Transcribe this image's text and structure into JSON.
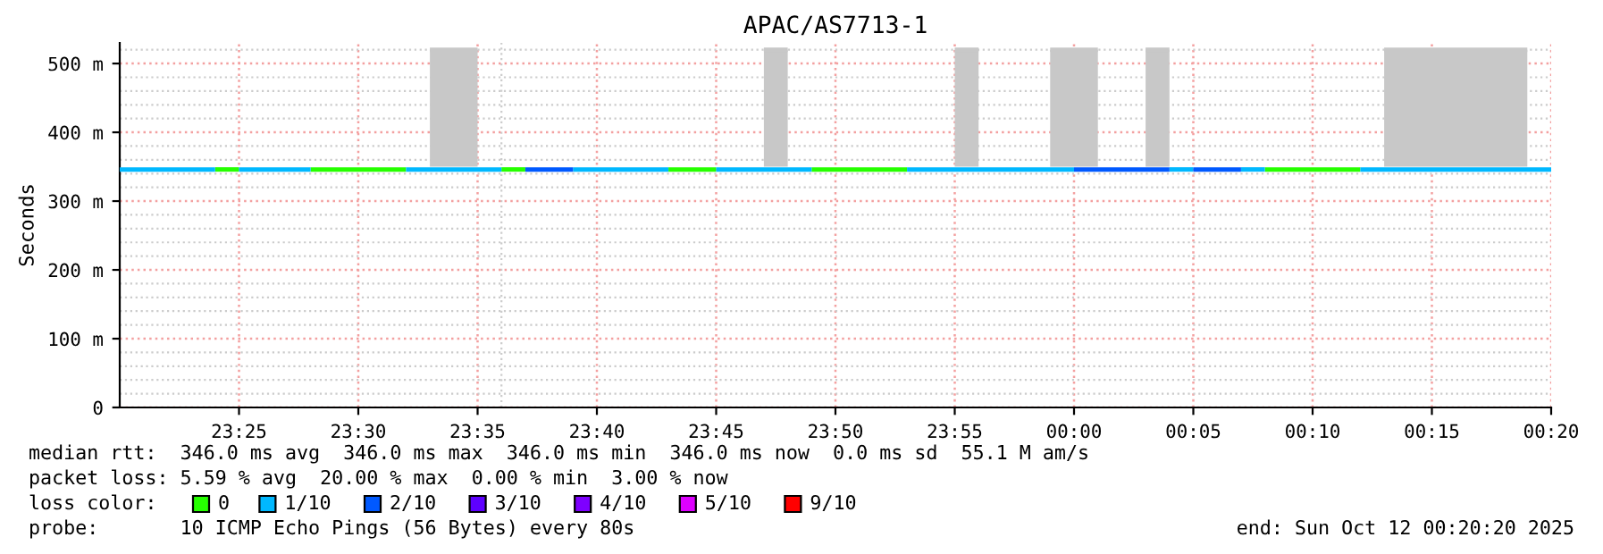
{
  "chart_data": {
    "type": "line",
    "title": "APAC/AS7713-1",
    "ylabel": "Seconds",
    "xlim": [
      "2025-10-11T23:20",
      "2025-10-12T00:20"
    ],
    "ylim": [
      0,
      530
    ],
    "xticks": [
      {
        "value": "2025-10-11T23:25",
        "label": "23:25"
      },
      {
        "value": "2025-10-11T23:30",
        "label": "23:30"
      },
      {
        "value": "2025-10-11T23:35",
        "label": "23:35"
      },
      {
        "value": "2025-10-11T23:40",
        "label": "23:40"
      },
      {
        "value": "2025-10-11T23:45",
        "label": "23:45"
      },
      {
        "value": "2025-10-11T23:50",
        "label": "23:50"
      },
      {
        "value": "2025-10-11T23:55",
        "label": "23:55"
      },
      {
        "value": "2025-10-12T00:00",
        "label": "00:00"
      },
      {
        "value": "2025-10-12T00:05",
        "label": "00:05"
      },
      {
        "value": "2025-10-12T00:10",
        "label": "00:10"
      },
      {
        "value": "2025-10-12T00:15",
        "label": "00:15"
      },
      {
        "value": "2025-10-12T00:20",
        "label": "00:20"
      }
    ],
    "yticks": [
      0,
      {
        "value": 100,
        "label": "100 m"
      },
      {
        "value": 200,
        "label": "200 m"
      },
      {
        "value": 300,
        "label": "300 m"
      },
      {
        "value": 400,
        "label": "400 m"
      },
      {
        "value": 500,
        "label": "500 m"
      }
    ],
    "grid": true,
    "legend": "bottom",
    "legend_title": "loss color:",
    "series": [
      {
        "color": "#c8c8c8",
        "x": [
          "2025-10-11T23:33",
          "2025-10-11T23:35"
        ],
        "values": [
          520,
          520
        ],
        "lower": [
          350,
          350
        ],
        "upper": [
          520,
          520
        ]
      },
      {
        "color": "#c8c8c8",
        "x": [
          "2025-10-11T23:47",
          "2025-10-11T23:48"
        ],
        "values": [
          520,
          520
        ],
        "lower": [
          350,
          350
        ],
        "upper": [
          520,
          520
        ]
      },
      {
        "color": "#c8c8c8",
        "x": [
          "2025-10-11T23:55",
          "2025-10-11T23:56"
        ],
        "values": [
          520,
          520
        ],
        "lower": [
          350,
          350
        ],
        "upper": [
          520,
          520
        ]
      },
      {
        "color": "#c8c8c8",
        "x": [
          "2025-10-11T23:59",
          "2025-10-12T00:01"
        ],
        "values": [
          520,
          520
        ],
        "lower": [
          350,
          350
        ],
        "upper": [
          520,
          520
        ]
      },
      {
        "color": "#c8c8c8",
        "x": [
          "2025-10-12T00:03",
          "2025-10-12T00:04"
        ],
        "values": [
          520,
          520
        ],
        "lower": [
          350,
          350
        ],
        "upper": [
          520,
          520
        ]
      },
      {
        "color": "#c8c8c8",
        "x": [
          "2025-10-12T00:13",
          "2025-10-12T00:19"
        ],
        "values": [
          520,
          520
        ],
        "lower": [
          350,
          350
        ],
        "upper": [
          520,
          520
        ]
      },
      {
        "name": "0",
        "color": "#26ff00",
        "x": [
          "2025-10-11T23:24",
          "2025-10-11T23:25"
        ],
        "values": [
          346,
          346
        ]
      },
      {
        "color": "#26ff00",
        "x": [
          "2025-10-11T23:28",
          "2025-10-11T23:32"
        ],
        "values": [
          346,
          346
        ]
      },
      {
        "color": "#26ff00",
        "x": [
          "2025-10-11T23:36",
          "2025-10-11T23:37"
        ],
        "values": [
          346,
          346
        ]
      },
      {
        "color": "#26ff00",
        "x": [
          "2025-10-11T23:43",
          "2025-10-11T23:45"
        ],
        "values": [
          346,
          346
        ]
      },
      {
        "color": "#26ff00",
        "x": [
          "2025-10-11T23:49",
          "2025-10-11T23:53"
        ],
        "values": [
          346,
          346
        ]
      },
      {
        "color": "#26ff00",
        "x": [
          "2025-10-12T00:08",
          "2025-10-12T00:12"
        ],
        "values": [
          346,
          346
        ]
      },
      {
        "name": "1/10",
        "color": "#00b8ff",
        "x": [
          "2025-10-11T23:20",
          "2025-10-11T23:24"
        ],
        "values": [
          346,
          346
        ]
      },
      {
        "color": "#00b8ff",
        "x": [
          "2025-10-11T23:25",
          "2025-10-11T23:28"
        ],
        "values": [
          346,
          346
        ]
      },
      {
        "color": "#00b8ff",
        "x": [
          "2025-10-11T23:32",
          "2025-10-11T23:36"
        ],
        "values": [
          346,
          346
        ]
      },
      {
        "color": "#00b8ff",
        "x": [
          "2025-10-11T23:39",
          "2025-10-11T23:43"
        ],
        "values": [
          346,
          346
        ]
      },
      {
        "color": "#00b8ff",
        "x": [
          "2025-10-11T23:45",
          "2025-10-11T23:49"
        ],
        "values": [
          346,
          346
        ]
      },
      {
        "color": "#00b8ff",
        "x": [
          "2025-10-11T23:53",
          "2025-10-12T00:00"
        ],
        "values": [
          346,
          346
        ]
      },
      {
        "color": "#00b8ff",
        "x": [
          "2025-10-12T00:04",
          "2025-10-12T00:05"
        ],
        "values": [
          346,
          346
        ]
      },
      {
        "color": "#00b8ff",
        "x": [
          "2025-10-12T00:07",
          "2025-10-12T00:08"
        ],
        "values": [
          346,
          346
        ]
      },
      {
        "color": "#00b8ff",
        "x": [
          "2025-10-12T00:12",
          "2025-10-12T00:20"
        ],
        "values": [
          346,
          346
        ]
      },
      {
        "name": "2/10",
        "color": "#0059ff",
        "x": [
          "2025-10-11T23:37",
          "2025-10-11T23:39"
        ],
        "values": [
          346,
          346
        ]
      },
      {
        "color": "#0059ff",
        "x": [
          "2025-10-12T00:00",
          "2025-10-12T00:04"
        ],
        "values": [
          346,
          346
        ]
      },
      {
        "color": "#0059ff",
        "x": [
          "2025-10-12T00:05",
          "2025-10-12T00:07"
        ],
        "values": [
          346,
          346
        ]
      },
      {
        "name": "3/10",
        "color": "#5e00ff"
      },
      {
        "name": "4/10",
        "color": "#7e00ff"
      },
      {
        "name": "5/10",
        "color": "#dd00ff"
      },
      {
        "name": "9/10",
        "color": "#ff0000"
      }
    ],
    "annotations": [
      "median rtt:  346.0 ms avg  346.0 ms max  346.0 ms min  346.0 ms now  0.0 ms sd  55.1 M am/s",
      "packet loss: 5.59 % avg  20.00 % max  0.00 % min  3.00 % now",
      "probe:       10 ICMP Echo Pings (56 Bytes) every 80s",
      "end: Sun Oct 12 00:20:20 2025"
    ]
  }
}
